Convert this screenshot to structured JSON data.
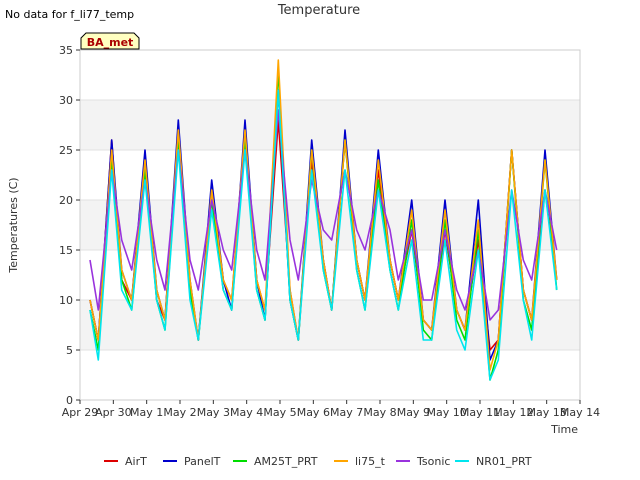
{
  "note": "No data for f_li77_temp",
  "badge": "BA_met",
  "chart_data": {
    "type": "line",
    "title": "Temperature",
    "xlabel": "Time",
    "ylabel": "Temperatures (C)",
    "ylim": [
      0,
      35
    ],
    "yticks": [
      0,
      5,
      10,
      15,
      20,
      25,
      30,
      35
    ],
    "xlim": [
      "2025-04-29",
      "2025-05-14"
    ],
    "xticks": [
      "Apr 29",
      "Apr 30",
      "May 1",
      "May 2",
      "May 3",
      "May 4",
      "May 5",
      "May 6",
      "May 7",
      "May 8",
      "May 9",
      "May 10",
      "May 11",
      "May 12",
      "May 13",
      "May 14"
    ],
    "grid": true,
    "legend_position": "bottom",
    "x_days": [
      0.3,
      0.55,
      0.95,
      1.25,
      1.55,
      1.95,
      2.3,
      2.55,
      2.95,
      3.3,
      3.55,
      3.95,
      4.3,
      4.55,
      4.95,
      5.3,
      5.55,
      5.95,
      6.3,
      6.55,
      6.95,
      7.3,
      7.55,
      7.95,
      8.3,
      8.55,
      8.95,
      9.3,
      9.55,
      9.95,
      10.3,
      10.55,
      10.95,
      11.3,
      11.55,
      11.95,
      12.3,
      12.55,
      12.95,
      13.3,
      13.55,
      13.95,
      14.3
    ],
    "series": [
      {
        "name": "AirT",
        "color": "#dd0000",
        "values": [
          10,
          6,
          26,
          12,
          10,
          24,
          10,
          8,
          27,
          11,
          6,
          21,
          12,
          10,
          27,
          12,
          9,
          28,
          11,
          6,
          24,
          14,
          9,
          26,
          14,
          10,
          23,
          14,
          10,
          17,
          8,
          7,
          17,
          9,
          7,
          16,
          5,
          6,
          25,
          11,
          8,
          21,
          12
        ]
      },
      {
        "name": "PanelT",
        "color": "#0000cc",
        "values": [
          10,
          6,
          26,
          13,
          10,
          25,
          11,
          8,
          28,
          12,
          6,
          22,
          12,
          9,
          28,
          12,
          8,
          31,
          10,
          6,
          26,
          14,
          9,
          27,
          14,
          10,
          25,
          14,
          10,
          20,
          8,
          7,
          20,
          9,
          7,
          20,
          4,
          6,
          25,
          11,
          8,
          25,
          12
        ]
      },
      {
        "name": "AM25T_PRT",
        "color": "#00dd00",
        "values": [
          9,
          5,
          24,
          12,
          9,
          23,
          10,
          7,
          26,
          11,
          6,
          20,
          11,
          9,
          26,
          11,
          8,
          33,
          10,
          6,
          25,
          13,
          9,
          26,
          13,
          9,
          22,
          13,
          9,
          18,
          7,
          6,
          18,
          8,
          6,
          17,
          2,
          5,
          25,
          10,
          7,
          24,
          11
        ]
      },
      {
        "name": "li75_t",
        "color": "#ffa500",
        "values": [
          10,
          6,
          25,
          13,
          10,
          24,
          11,
          8,
          27,
          12,
          6,
          21,
          12,
          10,
          27,
          12,
          9,
          34,
          11,
          6,
          25,
          14,
          9,
          26,
          14,
          10,
          24,
          14,
          10,
          19,
          8,
          7,
          19,
          9,
          7,
          18,
          3,
          6,
          25,
          11,
          8,
          24,
          12
        ]
      },
      {
        "name": "Tsonic",
        "color": "#9933dd",
        "values": [
          14,
          9,
          23,
          16,
          13,
          22,
          14,
          11,
          25,
          14,
          11,
          20,
          15,
          13,
          25,
          15,
          12,
          29,
          16,
          12,
          22,
          17,
          16,
          23,
          17,
          15,
          21,
          17,
          12,
          17,
          10,
          10,
          17,
          11,
          9,
          15,
          8,
          9,
          21,
          14,
          12,
          21,
          15
        ]
      },
      {
        "name": "NR01_PRT",
        "color": "#00e5ee",
        "values": [
          9,
          4,
          23,
          11,
          9,
          22,
          10,
          7,
          25,
          10,
          6,
          19,
          11,
          9,
          25,
          11,
          8,
          31,
          10,
          6,
          23,
          13,
          9,
          23,
          13,
          9,
          21,
          13,
          9,
          16,
          6,
          6,
          16,
          7,
          5,
          15,
          2,
          4,
          21,
          10,
          6,
          21,
          11
        ]
      }
    ]
  }
}
